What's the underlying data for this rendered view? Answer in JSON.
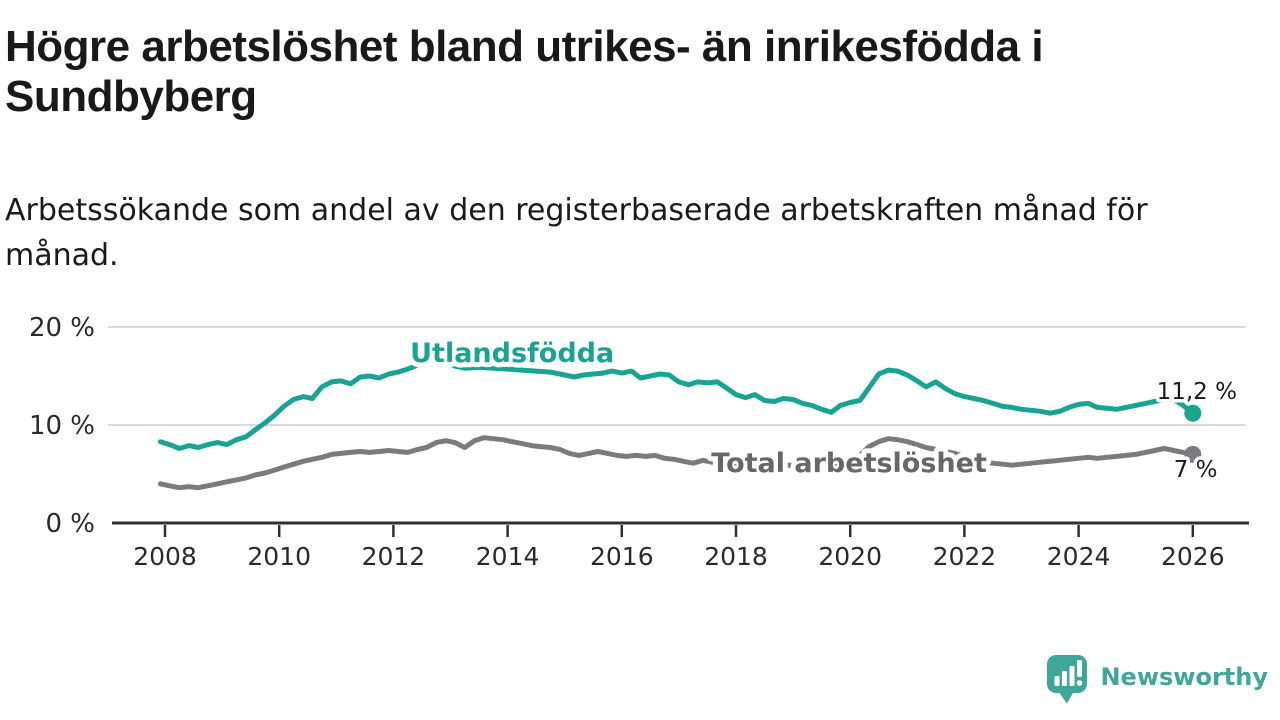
{
  "header": {
    "title": "Högre arbetslöshet bland utrikes- än inrikesfödda i Sundbyberg",
    "subtitle": "Arbetssökande som andel av den registerbaserade arbetskraften månad för månad."
  },
  "branding": {
    "logo_text": "Newsworthy",
    "logo_icon": "bar-chart-speech-bubble-icon",
    "logo_color": "#3fa699"
  },
  "chart_data": {
    "type": "line",
    "title": "Högre arbetslöshet bland utrikes- än inrikesfödda i Sundbyberg",
    "xlabel": "",
    "ylabel": "",
    "x_range": [
      2007.9,
      2026.6
    ],
    "ylim": [
      0,
      21
    ],
    "grid": "horizontal",
    "grid_color": "#dadada",
    "axis_color": "#2f2f2f",
    "text_color": "#2a2a2a",
    "x_axis": {
      "ticks": [
        2008,
        2010,
        2012,
        2014,
        2016,
        2018,
        2020,
        2022,
        2024,
        2026
      ]
    },
    "y_axis": {
      "ticks": [
        {
          "value": 20,
          "label": "20 %"
        },
        {
          "value": 10,
          "label": "10 %"
        },
        {
          "value": 0,
          "label": "0 %"
        }
      ]
    },
    "series": [
      {
        "name": "Total arbetslöshet",
        "color": "#7b7b7f",
        "end_label": "7 %",
        "end_value": 7.0,
        "points": [
          [
            2007.92,
            4.0
          ],
          [
            2008.08,
            3.8
          ],
          [
            2008.25,
            3.6
          ],
          [
            2008.42,
            3.7
          ],
          [
            2008.58,
            3.6
          ],
          [
            2008.75,
            3.8
          ],
          [
            2008.92,
            4.0
          ],
          [
            2009.08,
            4.2
          ],
          [
            2009.25,
            4.4
          ],
          [
            2009.42,
            4.6
          ],
          [
            2009.58,
            4.9
          ],
          [
            2009.75,
            5.1
          ],
          [
            2009.92,
            5.4
          ],
          [
            2010.08,
            5.7
          ],
          [
            2010.25,
            6.0
          ],
          [
            2010.42,
            6.3
          ],
          [
            2010.58,
            6.5
          ],
          [
            2010.75,
            6.7
          ],
          [
            2010.92,
            7.0
          ],
          [
            2011.08,
            7.1
          ],
          [
            2011.25,
            7.2
          ],
          [
            2011.42,
            7.3
          ],
          [
            2011.58,
            7.2
          ],
          [
            2011.75,
            7.3
          ],
          [
            2011.92,
            7.4
          ],
          [
            2012.08,
            7.3
          ],
          [
            2012.25,
            7.2
          ],
          [
            2012.42,
            7.5
          ],
          [
            2012.58,
            7.7
          ],
          [
            2012.75,
            8.2
          ],
          [
            2012.92,
            8.4
          ],
          [
            2013.08,
            8.2
          ],
          [
            2013.25,
            7.7
          ],
          [
            2013.42,
            8.4
          ],
          [
            2013.58,
            8.7
          ],
          [
            2013.75,
            8.6
          ],
          [
            2013.92,
            8.5
          ],
          [
            2014.08,
            8.3
          ],
          [
            2014.25,
            8.1
          ],
          [
            2014.42,
            7.9
          ],
          [
            2014.58,
            7.8
          ],
          [
            2014.75,
            7.7
          ],
          [
            2014.92,
            7.5
          ],
          [
            2015.08,
            7.1
          ],
          [
            2015.25,
            6.9
          ],
          [
            2015.42,
            7.1
          ],
          [
            2015.58,
            7.3
          ],
          [
            2015.75,
            7.1
          ],
          [
            2015.92,
            6.9
          ],
          [
            2016.08,
            6.8
          ],
          [
            2016.25,
            6.9
          ],
          [
            2016.42,
            6.8
          ],
          [
            2016.58,
            6.9
          ],
          [
            2016.75,
            6.6
          ],
          [
            2016.92,
            6.5
          ],
          [
            2017.08,
            6.3
          ],
          [
            2017.25,
            6.1
          ],
          [
            2017.42,
            6.4
          ],
          [
            2017.58,
            6.2
          ],
          [
            2017.75,
            6.1
          ],
          [
            2017.92,
            6.0
          ],
          [
            2018.25,
            5.9
          ],
          [
            2018.5,
            5.8
          ],
          [
            2018.75,
            5.9
          ],
          [
            2019.0,
            5.9
          ],
          [
            2019.25,
            5.8
          ],
          [
            2019.5,
            5.8
          ],
          [
            2019.75,
            6.0
          ],
          [
            2020.0,
            6.3
          ],
          [
            2020.17,
            6.9
          ],
          [
            2020.33,
            7.8
          ],
          [
            2020.5,
            8.3
          ],
          [
            2020.67,
            8.6
          ],
          [
            2020.83,
            8.5
          ],
          [
            2021.0,
            8.3
          ],
          [
            2021.17,
            8.0
          ],
          [
            2021.33,
            7.7
          ],
          [
            2021.5,
            7.5
          ],
          [
            2021.67,
            7.3
          ],
          [
            2021.83,
            7.1
          ],
          [
            2022.0,
            6.8
          ],
          [
            2022.17,
            6.5
          ],
          [
            2022.33,
            6.2
          ],
          [
            2022.5,
            6.1
          ],
          [
            2022.67,
            6.0
          ],
          [
            2022.83,
            5.9
          ],
          [
            2023.0,
            6.0
          ],
          [
            2023.17,
            6.1
          ],
          [
            2023.33,
            6.2
          ],
          [
            2023.5,
            6.3
          ],
          [
            2023.67,
            6.4
          ],
          [
            2023.83,
            6.5
          ],
          [
            2024.0,
            6.6
          ],
          [
            2024.17,
            6.7
          ],
          [
            2024.33,
            6.6
          ],
          [
            2024.5,
            6.7
          ],
          [
            2024.67,
            6.8
          ],
          [
            2024.83,
            6.9
          ],
          [
            2025.0,
            7.0
          ],
          [
            2025.17,
            7.2
          ],
          [
            2025.33,
            7.4
          ],
          [
            2025.5,
            7.6
          ],
          [
            2025.67,
            7.4
          ],
          [
            2025.83,
            7.2
          ],
          [
            2026.0,
            7.0
          ]
        ]
      },
      {
        "name": "Utlandsfödda",
        "color": "#19a392",
        "end_label": "11,2 %",
        "end_value": 11.2,
        "points": [
          [
            2007.92,
            8.3
          ],
          [
            2008.08,
            8.0
          ],
          [
            2008.25,
            7.6
          ],
          [
            2008.42,
            7.9
          ],
          [
            2008.58,
            7.7
          ],
          [
            2008.75,
            8.0
          ],
          [
            2008.92,
            8.2
          ],
          [
            2009.08,
            8.0
          ],
          [
            2009.25,
            8.5
          ],
          [
            2009.42,
            8.8
          ],
          [
            2009.58,
            9.5
          ],
          [
            2009.75,
            10.2
          ],
          [
            2009.92,
            11.0
          ],
          [
            2010.08,
            11.9
          ],
          [
            2010.25,
            12.6
          ],
          [
            2010.42,
            12.9
          ],
          [
            2010.58,
            12.7
          ],
          [
            2010.75,
            13.9
          ],
          [
            2010.92,
            14.4
          ],
          [
            2011.08,
            14.5
          ],
          [
            2011.25,
            14.2
          ],
          [
            2011.42,
            14.9
          ],
          [
            2011.58,
            15.0
          ],
          [
            2011.75,
            14.8
          ],
          [
            2011.92,
            15.2
          ],
          [
            2012.08,
            15.4
          ],
          [
            2012.25,
            15.7
          ],
          [
            2012.42,
            16.1
          ],
          [
            2012.58,
            16.4
          ],
          [
            2012.75,
            16.7
          ],
          [
            2012.92,
            16.4
          ],
          [
            2013.08,
            16.0
          ],
          [
            2013.25,
            15.8
          ],
          [
            2013.5,
            15.9
          ],
          [
            2013.75,
            15.8
          ],
          [
            2014.0,
            15.7
          ],
          [
            2014.25,
            15.6
          ],
          [
            2014.5,
            15.5
          ],
          [
            2014.75,
            15.4
          ],
          [
            2015.0,
            15.1
          ],
          [
            2015.17,
            14.9
          ],
          [
            2015.33,
            15.1
          ],
          [
            2015.5,
            15.2
          ],
          [
            2015.67,
            15.3
          ],
          [
            2015.83,
            15.5
          ],
          [
            2016.0,
            15.3
          ],
          [
            2016.17,
            15.5
          ],
          [
            2016.33,
            14.8
          ],
          [
            2016.5,
            15.0
          ],
          [
            2016.67,
            15.2
          ],
          [
            2016.83,
            15.1
          ],
          [
            2017.0,
            14.4
          ],
          [
            2017.17,
            14.1
          ],
          [
            2017.33,
            14.4
          ],
          [
            2017.5,
            14.3
          ],
          [
            2017.67,
            14.4
          ],
          [
            2017.83,
            13.8
          ],
          [
            2018.0,
            13.1
          ],
          [
            2018.17,
            12.8
          ],
          [
            2018.33,
            13.1
          ],
          [
            2018.5,
            12.5
          ],
          [
            2018.67,
            12.4
          ],
          [
            2018.83,
            12.7
          ],
          [
            2019.0,
            12.6
          ],
          [
            2019.17,
            12.2
          ],
          [
            2019.33,
            12.0
          ],
          [
            2019.5,
            11.6
          ],
          [
            2019.67,
            11.3
          ],
          [
            2019.83,
            12.0
          ],
          [
            2020.0,
            12.3
          ],
          [
            2020.17,
            12.5
          ],
          [
            2020.33,
            13.8
          ],
          [
            2020.5,
            15.2
          ],
          [
            2020.67,
            15.6
          ],
          [
            2020.83,
            15.5
          ],
          [
            2021.0,
            15.1
          ],
          [
            2021.17,
            14.5
          ],
          [
            2021.33,
            13.9
          ],
          [
            2021.5,
            14.4
          ],
          [
            2021.67,
            13.7
          ],
          [
            2021.83,
            13.2
          ],
          [
            2022.0,
            12.9
          ],
          [
            2022.17,
            12.7
          ],
          [
            2022.33,
            12.5
          ],
          [
            2022.5,
            12.2
          ],
          [
            2022.67,
            11.9
          ],
          [
            2022.83,
            11.8
          ],
          [
            2023.0,
            11.6
          ],
          [
            2023.17,
            11.5
          ],
          [
            2023.33,
            11.4
          ],
          [
            2023.5,
            11.2
          ],
          [
            2023.67,
            11.4
          ],
          [
            2023.83,
            11.8
          ],
          [
            2024.0,
            12.1
          ],
          [
            2024.17,
            12.2
          ],
          [
            2024.33,
            11.8
          ],
          [
            2024.5,
            11.7
          ],
          [
            2024.67,
            11.6
          ],
          [
            2024.83,
            11.8
          ],
          [
            2025.0,
            12.0
          ],
          [
            2025.17,
            12.2
          ],
          [
            2025.33,
            12.4
          ],
          [
            2025.5,
            12.6
          ],
          [
            2025.67,
            12.6
          ],
          [
            2025.83,
            12.0
          ],
          [
            2026.0,
            11.2
          ]
        ]
      }
    ],
    "annotations": [
      {
        "role": "series-label",
        "text": "Utlandsfödda",
        "year": 2014.08,
        "value": 16.43,
        "color": "#19a392",
        "bold": true
      },
      {
        "role": "series-label",
        "text": "Total arbetslöshet",
        "year": 2019.98,
        "value": 5.2,
        "color": "#67676b",
        "bold": true
      },
      {
        "role": "value-label",
        "text": "11,2 %",
        "year": 2026.07,
        "value": 12.65,
        "color": "#1a1a1a",
        "bold": false
      },
      {
        "role": "value-label",
        "text": "7 %",
        "year": 2026.05,
        "value": 4.69,
        "color": "#1a1a1a",
        "bold": false
      }
    ]
  }
}
